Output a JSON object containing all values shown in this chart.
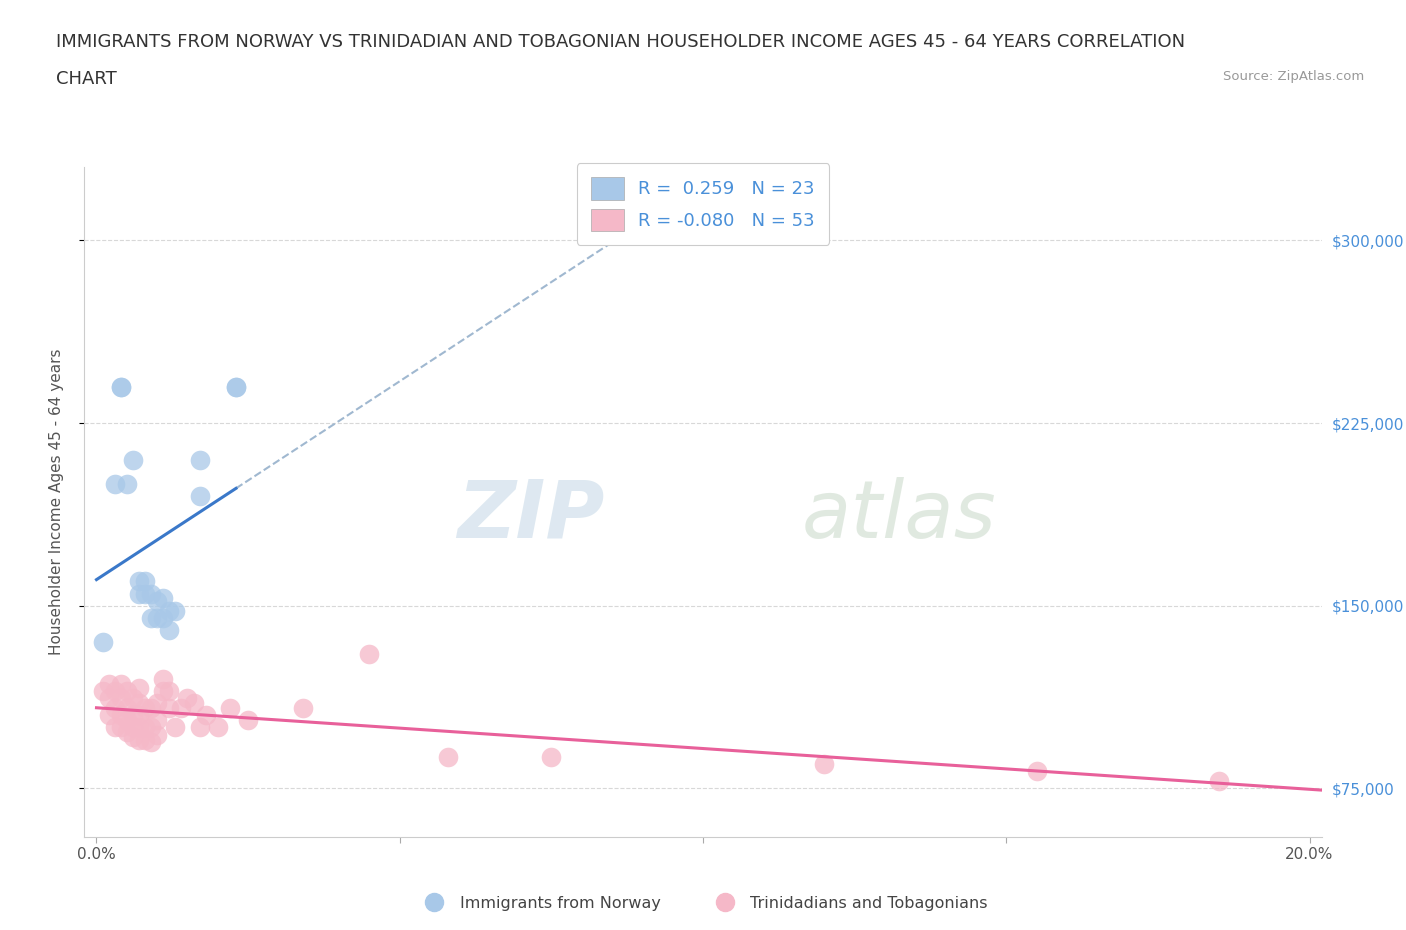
{
  "title_line1": "IMMIGRANTS FROM NORWAY VS TRINIDADIAN AND TOBAGONIAN HOUSEHOLDER INCOME AGES 45 - 64 YEARS CORRELATION",
  "title_line2": "CHART",
  "source_text": "Source: ZipAtlas.com",
  "ylabel": "Householder Income Ages 45 - 64 years",
  "xlim": [
    -0.002,
    0.202
  ],
  "ylim": [
    55000,
    330000
  ],
  "yticks": [
    75000,
    150000,
    225000,
    300000
  ],
  "ytick_labels": [
    "$75,000",
    "$150,000",
    "$225,000",
    "$300,000"
  ],
  "xticks": [
    0.0,
    0.05,
    0.1,
    0.15,
    0.2
  ],
  "xtick_labels": [
    "0.0%",
    "",
    "",
    "",
    "20.0%"
  ],
  "watermark_zip": "ZIP",
  "watermark_atlas": "atlas",
  "norway_R": 0.259,
  "norway_N": 23,
  "tt_R": -0.08,
  "tt_N": 53,
  "norway_color": "#a8c8e8",
  "tt_color": "#f5b8c8",
  "norway_line_color": "#3a78c9",
  "tt_line_color": "#e8609a",
  "norway_scatter_x": [
    0.001,
    0.003,
    0.004,
    0.004,
    0.005,
    0.006,
    0.007,
    0.007,
    0.008,
    0.008,
    0.009,
    0.009,
    0.01,
    0.01,
    0.011,
    0.011,
    0.012,
    0.012,
    0.013,
    0.017,
    0.017,
    0.023,
    0.023
  ],
  "norway_scatter_y": [
    135000,
    200000,
    240000,
    240000,
    200000,
    210000,
    155000,
    160000,
    155000,
    160000,
    145000,
    155000,
    145000,
    152000,
    145000,
    153000,
    140000,
    148000,
    148000,
    195000,
    210000,
    240000,
    240000
  ],
  "tt_scatter_x": [
    0.001,
    0.002,
    0.002,
    0.002,
    0.003,
    0.003,
    0.003,
    0.004,
    0.004,
    0.004,
    0.004,
    0.005,
    0.005,
    0.005,
    0.005,
    0.006,
    0.006,
    0.006,
    0.006,
    0.007,
    0.007,
    0.007,
    0.007,
    0.007,
    0.008,
    0.008,
    0.008,
    0.009,
    0.009,
    0.009,
    0.01,
    0.01,
    0.01,
    0.011,
    0.011,
    0.012,
    0.012,
    0.013,
    0.014,
    0.015,
    0.016,
    0.017,
    0.018,
    0.02,
    0.022,
    0.025,
    0.034,
    0.045,
    0.058,
    0.075,
    0.12,
    0.155,
    0.185
  ],
  "tt_scatter_y": [
    115000,
    105000,
    112000,
    118000,
    100000,
    108000,
    115000,
    100000,
    105000,
    112000,
    118000,
    98000,
    103000,
    108000,
    115000,
    96000,
    100000,
    105000,
    112000,
    95000,
    100000,
    105000,
    110000,
    116000,
    95000,
    100000,
    108000,
    94000,
    100000,
    108000,
    97000,
    103000,
    110000,
    115000,
    120000,
    108000,
    115000,
    100000,
    108000,
    112000,
    110000,
    100000,
    105000,
    100000,
    108000,
    103000,
    108000,
    130000,
    88000,
    88000,
    85000,
    82000,
    78000
  ],
  "background_color": "#ffffff",
  "grid_color": "#d8d8d8",
  "title_fontsize": 13,
  "axis_label_fontsize": 11,
  "tick_fontsize": 11,
  "legend_fontsize": 13
}
